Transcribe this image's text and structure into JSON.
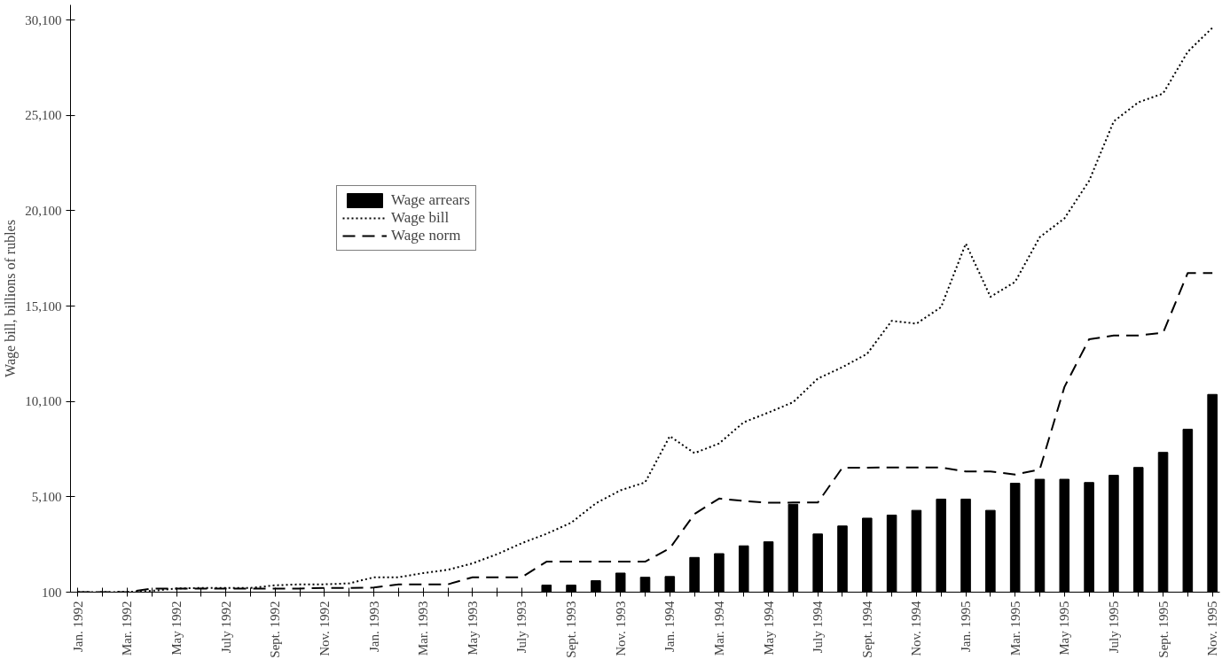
{
  "chart_data": {
    "type": "line",
    "ylabel": "Wage bill, billions of rubles",
    "categories": [
      "Jan. 1992",
      null,
      "Mar. 1992",
      null,
      "May 1992",
      null,
      "July 1992",
      null,
      "Sept. 1992",
      null,
      "Nov. 1992",
      null,
      "Jan. 1993",
      null,
      "Mar. 1993",
      null,
      "May 1993",
      null,
      "July 1993",
      null,
      "Sept. 1993",
      null,
      "Nov. 1993",
      null,
      "Jan. 1994",
      null,
      "Mar. 1994",
      null,
      "May 1994",
      null,
      "July 1994",
      null,
      "Sept. 1994",
      null,
      "Nov. 1994",
      null,
      "Jan. 1995",
      null,
      "Mar. 1995",
      null,
      "May 1995",
      null,
      "July 1995",
      null,
      "Sept. 1995",
      null,
      "Nov. 1995"
    ],
    "series": [
      {
        "name": "Wage arrears",
        "type": "bar",
        "color": "#000000",
        "values": [
          null,
          null,
          null,
          null,
          null,
          null,
          null,
          null,
          null,
          null,
          null,
          null,
          null,
          null,
          null,
          null,
          null,
          null,
          null,
          470,
          470,
          700,
          1100,
          880,
          920,
          1920,
          2120,
          2530,
          2740,
          4710,
          3150,
          3570,
          3980,
          4140,
          4390,
          4980,
          4980,
          4390,
          5810,
          6020,
          6020,
          5850,
          6230,
          6640,
          7430,
          8640,
          10470
        ]
      },
      {
        "name": "Wage bill",
        "line_style": "dotted",
        "color": "#000000",
        "values": [
          100,
          100,
          110,
          170,
          290,
          320,
          320,
          320,
          460,
          510,
          510,
          560,
          880,
          880,
          1100,
          1270,
          1610,
          2090,
          2670,
          3160,
          3740,
          4760,
          5440,
          5860,
          8280,
          7390,
          7900,
          9010,
          9520,
          10060,
          11300,
          11900,
          12600,
          14330,
          14180,
          15050,
          18380,
          15590,
          16370,
          18720,
          19700,
          21670,
          24790,
          25790,
          26250,
          28440,
          29700
        ]
      },
      {
        "name": "Wage norm",
        "line_style": "dashed",
        "color": "#000000",
        "values": [
          100,
          100,
          100,
          290,
          290,
          290,
          290,
          290,
          290,
          290,
          320,
          320,
          340,
          510,
          510,
          510,
          880,
          880,
          880,
          1700,
          1700,
          1700,
          1700,
          1700,
          2400,
          4200,
          5010,
          4880,
          4790,
          4800,
          4800,
          6630,
          6630,
          6640,
          6640,
          6640,
          6430,
          6430,
          6270,
          6530,
          10860,
          13360,
          13560,
          13560,
          13700,
          16840,
          16840
        ]
      }
    ],
    "ylim": [
      100,
      30900
    ],
    "yticks": [
      100,
      {
        "value": 5100,
        "label": "5,100"
      },
      {
        "value": 10100,
        "label": "10,100"
      },
      {
        "value": 15100,
        "label": "15,100"
      },
      {
        "value": 20100,
        "label": "20,100"
      },
      {
        "value": 25100,
        "label": "25,100"
      },
      {
        "value": 30100,
        "label": "30,100"
      }
    ],
    "grid": false,
    "legend": "top left"
  }
}
